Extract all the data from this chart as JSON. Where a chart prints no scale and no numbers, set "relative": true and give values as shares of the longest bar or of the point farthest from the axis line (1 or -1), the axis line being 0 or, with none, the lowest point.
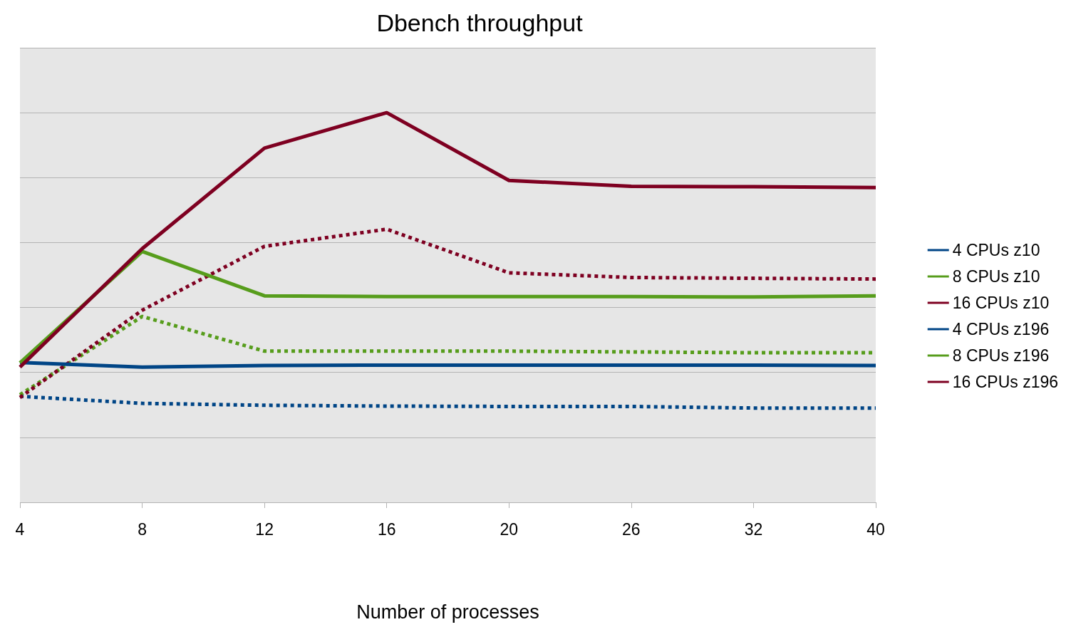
{
  "chart_data": {
    "type": "line",
    "title": "Dbench throughput",
    "xlabel": "Number of processes",
    "relative": true,
    "grid": "y",
    "legend": "right",
    "marker": "none",
    "categories": [
      "4",
      "8",
      "12",
      "16",
      "20",
      "26",
      "32",
      "40"
    ],
    "series": [
      {
        "name": "4 CPUs z10",
        "color": "#004586",
        "line_style": "dotted",
        "values": [
          0.272,
          0.254,
          0.249,
          0.247,
          0.246,
          0.246,
          0.242,
          0.242
        ]
      },
      {
        "name": "8 CPUs z10",
        "color": "#579d1c",
        "line_style": "dotted",
        "values": [
          0.276,
          0.477,
          0.388,
          0.388,
          0.388,
          0.386,
          0.384,
          0.384
        ]
      },
      {
        "name": "16 CPUs z10",
        "color": "#7e0021",
        "line_style": "dotted",
        "values": [
          0.269,
          0.493,
          0.657,
          0.701,
          0.589,
          0.577,
          0.575,
          0.573
        ]
      },
      {
        "name": "4 CPUs z196",
        "color": "#004586",
        "line_style": "solid",
        "values": [
          0.359,
          0.347,
          0.351,
          0.352,
          0.352,
          0.352,
          0.352,
          0.351
        ]
      },
      {
        "name": "8 CPUs z196",
        "color": "#579d1c",
        "line_style": "solid",
        "values": [
          0.358,
          0.644,
          0.53,
          0.528,
          0.528,
          0.528,
          0.527,
          0.53
        ]
      },
      {
        "name": "16 CPUs z196",
        "color": "#7e0021",
        "line_style": "solid",
        "values": [
          0.347,
          0.651,
          0.909,
          1,
          0.826,
          0.811,
          0.81,
          0.808
        ]
      }
    ]
  }
}
